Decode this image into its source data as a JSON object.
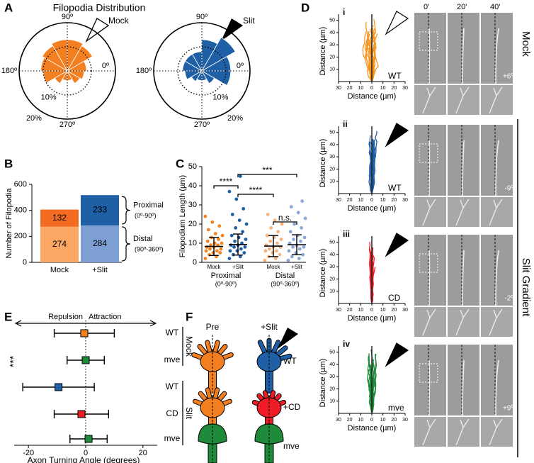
{
  "panel_labels": [
    "A",
    "B",
    "C",
    "D",
    "E",
    "F"
  ],
  "polar": {
    "title": "Filopodia Distribution",
    "angle_ticks": [
      {
        "value": 90,
        "label": "90º"
      },
      {
        "value": 180,
        "label": "180º"
      },
      {
        "value": 0,
        "label": "0º"
      },
      {
        "value": 270,
        "label": "270º"
      }
    ],
    "rticks": [
      {
        "value": 10,
        "label": "10%"
      },
      {
        "value": 20,
        "label": "20%"
      }
    ],
    "plots": [
      {
        "name": "Mock",
        "color": "#f47f20",
        "values": [
          8,
          12,
          13,
          13,
          12,
          11,
          10,
          6,
          4,
          4,
          6,
          7
        ]
      },
      {
        "name": "Slit",
        "color": "#1f5fa5",
        "values": [
          12,
          16,
          13,
          8,
          8,
          8,
          7,
          5,
          4,
          4,
          6,
          12
        ]
      }
    ]
  },
  "bar": {
    "ylabel": "Number of Filopodia",
    "ylim": [
      0,
      600
    ],
    "yticks": [
      0,
      200,
      400,
      600
    ],
    "categories": [
      "Mock",
      "+Slit"
    ],
    "series": [
      {
        "name": "Distal",
        "sublabel": "(90º-360º)",
        "colors": [
          "#fba765",
          "#7d9fd3"
        ],
        "values": [
          274,
          284
        ]
      },
      {
        "name": "Proximal",
        "sublabel": "(0º-90º)",
        "colors": [
          "#f26b21",
          "#1f5fa5"
        ],
        "values": [
          132,
          233
        ]
      }
    ]
  },
  "length": {
    "ylabel": "Filopodium Length (µm)",
    "ylim": [
      0,
      50
    ],
    "yticks": [
      0,
      10,
      20,
      30,
      40,
      50
    ],
    "groups": [
      {
        "name": "Proximal",
        "sublabel": "(0º-90º)"
      },
      {
        "name": "Distal",
        "sublabel": "(90º-360º)"
      }
    ],
    "series": [
      {
        "name": "Mock",
        "color": "#f5821f",
        "mean": 8.3,
        "sd": 4.7,
        "points": [
          2,
          3,
          4,
          5,
          5,
          6,
          6,
          7,
          7,
          8,
          8,
          9,
          9,
          10,
          10,
          11,
          12,
          13,
          14,
          15,
          17,
          19,
          21,
          24
        ]
      },
      {
        "name": "+Slit",
        "color": "#1f5fa8",
        "mean": 9.3,
        "sd": 5.5,
        "points": [
          2,
          3,
          4,
          5,
          6,
          6,
          7,
          8,
          8,
          9,
          9,
          10,
          11,
          12,
          13,
          14,
          16,
          18,
          20,
          22,
          25,
          28,
          33,
          37,
          45
        ]
      },
      {
        "name": "Mock",
        "color": "#f9b27a",
        "mean": 8.5,
        "sd": 5.5,
        "points": [
          1,
          2,
          3,
          4,
          5,
          6,
          6,
          7,
          8,
          8,
          9,
          10,
          11,
          12,
          13,
          14,
          16,
          18,
          20,
          22,
          25
        ]
      },
      {
        "name": "+Slit",
        "color": "#8aa8d8",
        "mean": 9.2,
        "sd": 5.2,
        "points": [
          1,
          2,
          3,
          4,
          5,
          6,
          7,
          8,
          8,
          9,
          10,
          11,
          12,
          13,
          14,
          16,
          18,
          20,
          23,
          26,
          29,
          32
        ]
      }
    ],
    "significance": [
      {
        "label": "***",
        "pair": [
          1,
          3
        ]
      },
      {
        "label": "****",
        "pair": [
          0,
          1
        ]
      },
      {
        "label": "****",
        "pair": [
          1,
          2
        ]
      },
      {
        "label": "n.s.",
        "pair": [
          2,
          3
        ]
      }
    ]
  },
  "imaging": {
    "time_labels": [
      "0'",
      "20'",
      "40'"
    ],
    "side_labels": [
      "Mock",
      "Slit Gradient"
    ],
    "trace_axes": {
      "xlabel": "Distance (µm)",
      "ylabel": "Distance (µm)",
      "xlim": [
        -30,
        30
      ],
      "ylim": [
        0,
        55
      ],
      "xticks": [
        {
          "value": -30,
          "label": "30"
        },
        {
          "value": -20,
          "label": "20"
        },
        {
          "value": -10,
          "label": "10"
        },
        0,
        10,
        20,
        30
      ],
      "yticks": [
        10,
        20,
        30,
        40,
        50
      ]
    },
    "rows": [
      {
        "numeral": "i",
        "genotype": "WT",
        "angle": "+6º",
        "color": "#f7941d"
      },
      {
        "numeral": "ii",
        "genotype": "WT",
        "angle": "-9º",
        "color": "#1f5fa5"
      },
      {
        "numeral": "iii",
        "genotype": "CD",
        "angle": "-2º",
        "color": "#ee1c24"
      },
      {
        "numeral": "iv",
        "genotype": "mve",
        "angle": "+9º",
        "color": "#1f8a3a"
      }
    ]
  },
  "turning": {
    "xlabel": "Axon Turning Angle (degrees)",
    "xlim": [
      -25,
      25
    ],
    "xticks": [
      -20,
      0,
      20
    ],
    "direction_labels": [
      "Repulsion",
      "Attraction"
    ],
    "significance": "***",
    "conditions": [
      {
        "name": "Mock",
        "rows": [
          {
            "label": "WT",
            "color": "#f47f20",
            "mean": -0.5,
            "error": 10.5
          },
          {
            "label": "mve",
            "color": "#1f8a3a",
            "mean": 0,
            "error": 6.5
          }
        ]
      },
      {
        "name": "Slit",
        "rows": [
          {
            "label": "WT",
            "color": "#1f5fa5",
            "mean": -9.5,
            "error": 12.5
          },
          {
            "label": "CD",
            "color": "#ee1c24",
            "mean": -1.5,
            "error": 9.5
          },
          {
            "label": "mve",
            "color": "#1f8a3a",
            "mean": 1,
            "error": 6.5
          }
        ]
      }
    ]
  },
  "cartoon": {
    "columns": [
      "Pre",
      "+Slit"
    ],
    "rows": [
      "WT",
      "+CD",
      "mve"
    ]
  }
}
